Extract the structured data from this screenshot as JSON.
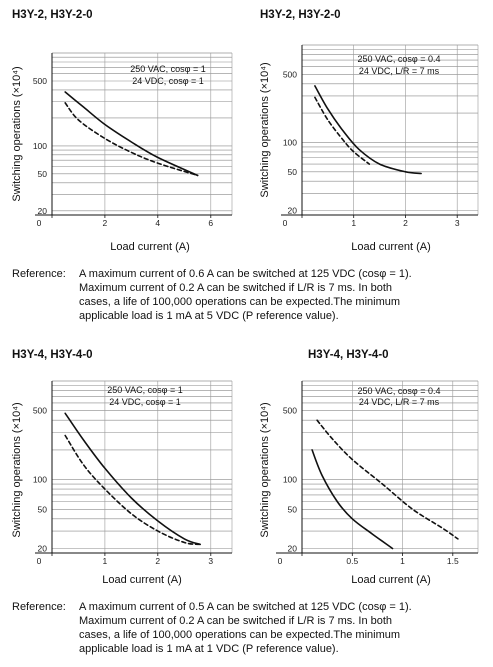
{
  "chart_data": [
    {
      "type": "line",
      "title": "H3Y-2, H3Y-2-0",
      "xlabel": "Load current (A)",
      "ylabel": "Switching operations (×10⁴)",
      "x_ticks": [
        "0",
        "2",
        "4",
        "6"
      ],
      "y_ticks": [
        "20",
        "50",
        "100",
        "500"
      ],
      "xlim": [
        0,
        6.8
      ],
      "ylim": [
        18,
        1000
      ],
      "legend": [
        "250 VAC, cosφ = 1",
        "24 VDC, cosφ = 1"
      ],
      "series": [
        {
          "name": "250 VAC, cosφ = 1",
          "style": "solid",
          "x": [
            0.5,
            1.2,
            2.0,
            3.0,
            4.0,
            5.5
          ],
          "y": [
            380,
            260,
            170,
            110,
            75,
            48
          ]
        },
        {
          "name": "24 VDC, cosφ = 1",
          "style": "dashed",
          "x": [
            0.5,
            1.0,
            2.0,
            3.0,
            4.0,
            5.5
          ],
          "y": [
            290,
            190,
            120,
            85,
            65,
            48
          ]
        }
      ]
    },
    {
      "type": "line",
      "title": "H3Y-2, H3Y-2-0",
      "xlabel": "Load current (A)",
      "ylabel": "Switching operations (×10⁴)",
      "x_ticks": [
        "0",
        "1",
        "2",
        "3"
      ],
      "y_ticks": [
        "20",
        "50",
        "100",
        "500"
      ],
      "xlim": [
        0,
        3.4
      ],
      "ylim": [
        18,
        1000
      ],
      "legend": [
        "250 VAC, cosφ = 0.4",
        "24 VDC, L/R = 7 ms"
      ],
      "series": [
        {
          "name": "250 VAC, cosφ = 0.4",
          "style": "solid",
          "x": [
            0.25,
            0.5,
            0.8,
            1.1,
            1.5,
            2.0,
            2.3
          ],
          "y": [
            380,
            220,
            130,
            85,
            60,
            50,
            48
          ]
        },
        {
          "name": "24 VDC, L/R = 7 ms",
          "style": "dashed",
          "x": [
            0.25,
            0.5,
            0.8,
            1.0,
            1.3
          ],
          "y": [
            290,
            170,
            105,
            80,
            60
          ]
        }
      ]
    },
    {
      "type": "line",
      "title": "H3Y-4, H3Y-4-0",
      "xlabel": "Load current (A)",
      "ylabel": "Switching operations (×10⁴)",
      "x_ticks": [
        "0",
        "1",
        "2",
        "3"
      ],
      "y_ticks": [
        "20",
        "50",
        "100",
        "500"
      ],
      "xlim": [
        0,
        3.4
      ],
      "ylim": [
        18,
        1000
      ],
      "legend": [
        "250 VAC, cosφ = 1",
        "24 VDC, cosφ = 1"
      ],
      "series": [
        {
          "name": "250 VAC, cosφ = 1",
          "style": "solid",
          "x": [
            0.25,
            0.6,
            1.0,
            1.5,
            2.0,
            2.5,
            2.8
          ],
          "y": [
            470,
            250,
            130,
            65,
            38,
            25,
            22
          ]
        },
        {
          "name": "24 VDC, cosφ = 1",
          "style": "dashed",
          "x": [
            0.25,
            0.6,
            1.0,
            1.5,
            2.0,
            2.5,
            2.8
          ],
          "y": [
            280,
            140,
            80,
            45,
            30,
            23,
            22
          ]
        }
      ]
    },
    {
      "type": "line",
      "title": "H3Y-4, H3Y-4-0",
      "xlabel": "Load current (A)",
      "ylabel": "Switching operations (×10⁴)",
      "x_ticks": [
        "0",
        "0.5",
        "1",
        "1.5"
      ],
      "y_ticks": [
        "20",
        "50",
        "100",
        "500"
      ],
      "xlim": [
        0,
        1.75
      ],
      "ylim": [
        18,
        1000
      ],
      "legend": [
        "250 VAC, cosφ = 0.4",
        "24 VDC, L/R = 7 ms"
      ],
      "series": [
        {
          "name": "250 VAC, cosφ = 0.4",
          "style": "solid",
          "x": [
            0.1,
            0.2,
            0.35,
            0.5,
            0.7,
            0.9
          ],
          "y": [
            200,
            110,
            60,
            40,
            28,
            20
          ]
        },
        {
          "name": "24 VDC, L/R = 7 ms",
          "style": "dashed",
          "x": [
            0.15,
            0.3,
            0.5,
            0.8,
            1.1,
            1.4,
            1.55
          ],
          "y": [
            400,
            260,
            160,
            90,
            50,
            32,
            25
          ]
        }
      ]
    }
  ],
  "references": [
    {
      "label": "Reference:",
      "lines": [
        "A maximum current of 0.6 A can be switched at 125 VDC (cosφ = 1).",
        "Maximum current of 0.2 A can be switched if L/R is 7 ms. In both",
        "cases, a life of 100,000 operations can be expected.The minimum",
        "applicable load is 1 mA at 5 VDC (P reference value)."
      ]
    },
    {
      "label": "Reference:",
      "lines": [
        "A maximum current of 0.5 A can be switched at 125 VDC (cosφ = 1).",
        "Maximum current of 0.2 A can be switched if L/R is 7 ms. In both",
        "cases, a life of 100,000 operations can be expected.The minimum",
        "applicable load is 1 mA at 1 VDC (P reference value)."
      ]
    }
  ]
}
